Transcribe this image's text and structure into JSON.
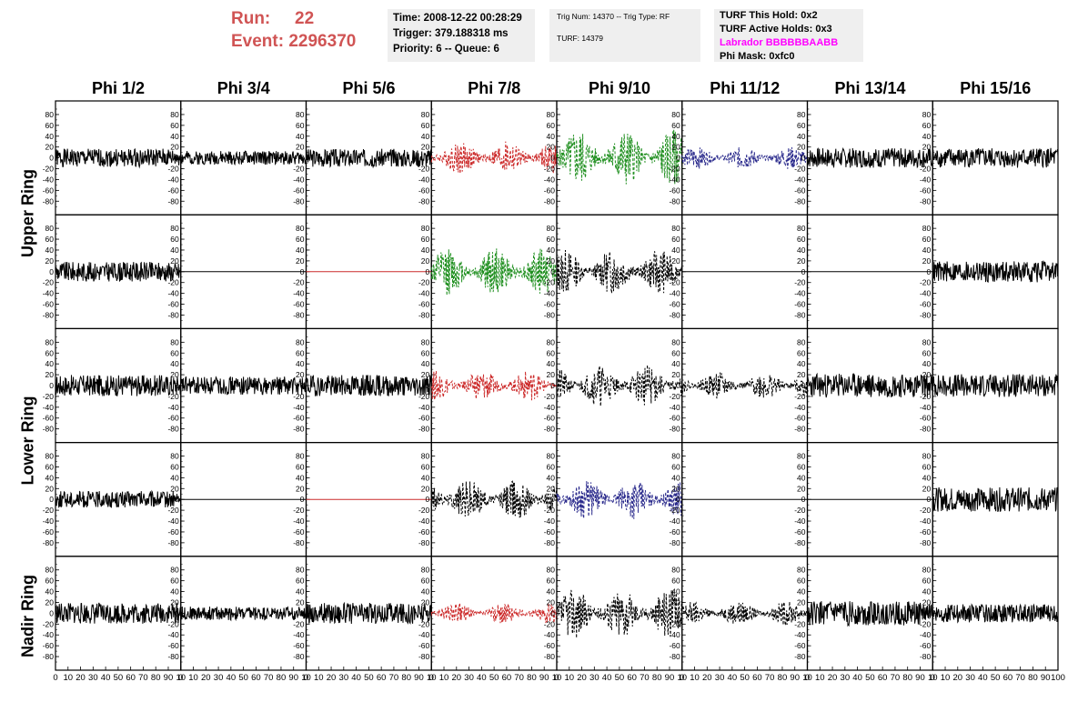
{
  "header": {
    "run_label": "Run:",
    "run_value": "22",
    "event_label": "Event:",
    "event_value": "2296370",
    "time": "Time: 2008-12-22 00:28:29",
    "trigger": "Trigger: 379.188318 ms",
    "priority": "Priority: 6 -- Queue: 6",
    "trig_num": "Trig Num: 14370 -- Trig Type: RF",
    "turf": "TURF: 14379",
    "turf_this_hold": "TURF This Hold: 0x2",
    "turf_active_holds": "TURF Active Holds: 0x3",
    "labrador": "Labrador BBBBBBAABB",
    "phi_mask": "Phi Mask: 0xfc0"
  },
  "columns": [
    "Phi 1/2",
    "Phi 3/4",
    "Phi 5/6",
    "Phi 7/8",
    "Phi 9/10",
    "Phi 11/12",
    "Phi 13/14",
    "Phi 15/16"
  ],
  "row_groups": [
    "Upper Ring",
    "Lower Ring",
    "Nadir Ring"
  ],
  "colors": {
    "black": "#000000",
    "red": "#cc2a2a",
    "green": "#1f8f1f",
    "blue": "#2a2a8c",
    "magenta": "#ff00ff"
  },
  "chart_data": {
    "type": "line",
    "xlim": [
      0,
      100
    ],
    "ylim": [
      -95,
      95
    ],
    "y_ticks": [
      "80",
      "60",
      "40",
      "20",
      "0",
      "-20",
      "-40",
      "-60",
      "-80"
    ],
    "x_ticks": [
      "0",
      "10",
      "20",
      "30",
      "40",
      "50",
      "60",
      "70",
      "80",
      "90",
      "100"
    ],
    "x_tick_labels_shown": [
      "0",
      "10",
      "20",
      "30",
      "40",
      "50",
      "60",
      "70",
      "80",
      "90",
      "10"
    ],
    "x_tick_labels_last": [
      "0",
      "10",
      "20",
      "30",
      "40",
      "50",
      "60",
      "70",
      "80",
      "90",
      "100"
    ],
    "cells": [
      [
        {
          "style": "solid",
          "color": "black",
          "amp": 12,
          "seed": 1
        },
        {
          "style": "solid",
          "color": "black",
          "amp": 9,
          "seed": 2
        },
        {
          "style": "solid",
          "color": "black",
          "amp": 12,
          "seed": 3
        },
        {
          "style": "dashed",
          "color": "red",
          "amp": 22,
          "seed": 4
        },
        {
          "style": "dashed",
          "color": "green",
          "amp": 38,
          "seed": 5
        },
        {
          "style": "dashed",
          "color": "blue",
          "amp": 15,
          "seed": 6
        },
        {
          "style": "solid",
          "color": "black",
          "amp": 13,
          "seed": 7
        },
        {
          "style": "solid",
          "color": "black",
          "amp": 13,
          "seed": 8
        }
      ],
      [
        {
          "style": "solid",
          "color": "black",
          "amp": 13,
          "seed": 9
        },
        {
          "style": "flat",
          "color": "black",
          "amp": 0,
          "seed": 10
        },
        {
          "style": "flat",
          "color": "red",
          "amp": 0,
          "seed": 11
        },
        {
          "style": "dashed",
          "color": "green",
          "amp": 32,
          "seed": 12
        },
        {
          "style": "dashed",
          "color": "black",
          "amp": 30,
          "seed": 13
        },
        {
          "style": "flat",
          "color": "black",
          "amp": 0,
          "seed": 14
        },
        {
          "style": "flat",
          "color": "black",
          "amp": 0,
          "seed": 15
        },
        {
          "style": "solid",
          "color": "black",
          "amp": 14,
          "seed": 16
        }
      ],
      [
        {
          "style": "solid",
          "color": "black",
          "amp": 14,
          "seed": 17
        },
        {
          "style": "solid",
          "color": "black",
          "amp": 12,
          "seed": 18
        },
        {
          "style": "solid",
          "color": "black",
          "amp": 14,
          "seed": 19
        },
        {
          "style": "dashed",
          "color": "red",
          "amp": 20,
          "seed": 20
        },
        {
          "style": "dashed",
          "color": "black",
          "amp": 28,
          "seed": 21
        },
        {
          "style": "dashed",
          "color": "black",
          "amp": 18,
          "seed": 22
        },
        {
          "style": "solid",
          "color": "black",
          "amp": 16,
          "seed": 23
        },
        {
          "style": "solid",
          "color": "black",
          "amp": 15,
          "seed": 24
        }
      ],
      [
        {
          "style": "solid",
          "color": "black",
          "amp": 11,
          "seed": 25
        },
        {
          "style": "flat",
          "color": "black",
          "amp": 0,
          "seed": 26
        },
        {
          "style": "flat",
          "color": "red",
          "amp": 0,
          "seed": 27
        },
        {
          "style": "dashed",
          "color": "black",
          "amp": 28,
          "seed": 28
        },
        {
          "style": "dashed",
          "color": "blue",
          "amp": 26,
          "seed": 29
        },
        {
          "style": "flat",
          "color": "black",
          "amp": 0,
          "seed": 30
        },
        {
          "style": "flat",
          "color": "black",
          "amp": 0,
          "seed": 31
        },
        {
          "style": "solid",
          "color": "black",
          "amp": 16,
          "seed": 32
        }
      ],
      [
        {
          "style": "solid",
          "color": "black",
          "amp": 14,
          "seed": 33
        },
        {
          "style": "solid",
          "color": "black",
          "amp": 9,
          "seed": 34
        },
        {
          "style": "solid",
          "color": "black",
          "amp": 14,
          "seed": 35
        },
        {
          "style": "dashed",
          "color": "red",
          "amp": 14,
          "seed": 36
        },
        {
          "style": "dashed",
          "color": "black",
          "amp": 34,
          "seed": 37
        },
        {
          "style": "dashed",
          "color": "black",
          "amp": 16,
          "seed": 38
        },
        {
          "style": "solid",
          "color": "black",
          "amp": 16,
          "seed": 39
        },
        {
          "style": "solid",
          "color": "black",
          "amp": 12,
          "seed": 40
        }
      ]
    ]
  }
}
